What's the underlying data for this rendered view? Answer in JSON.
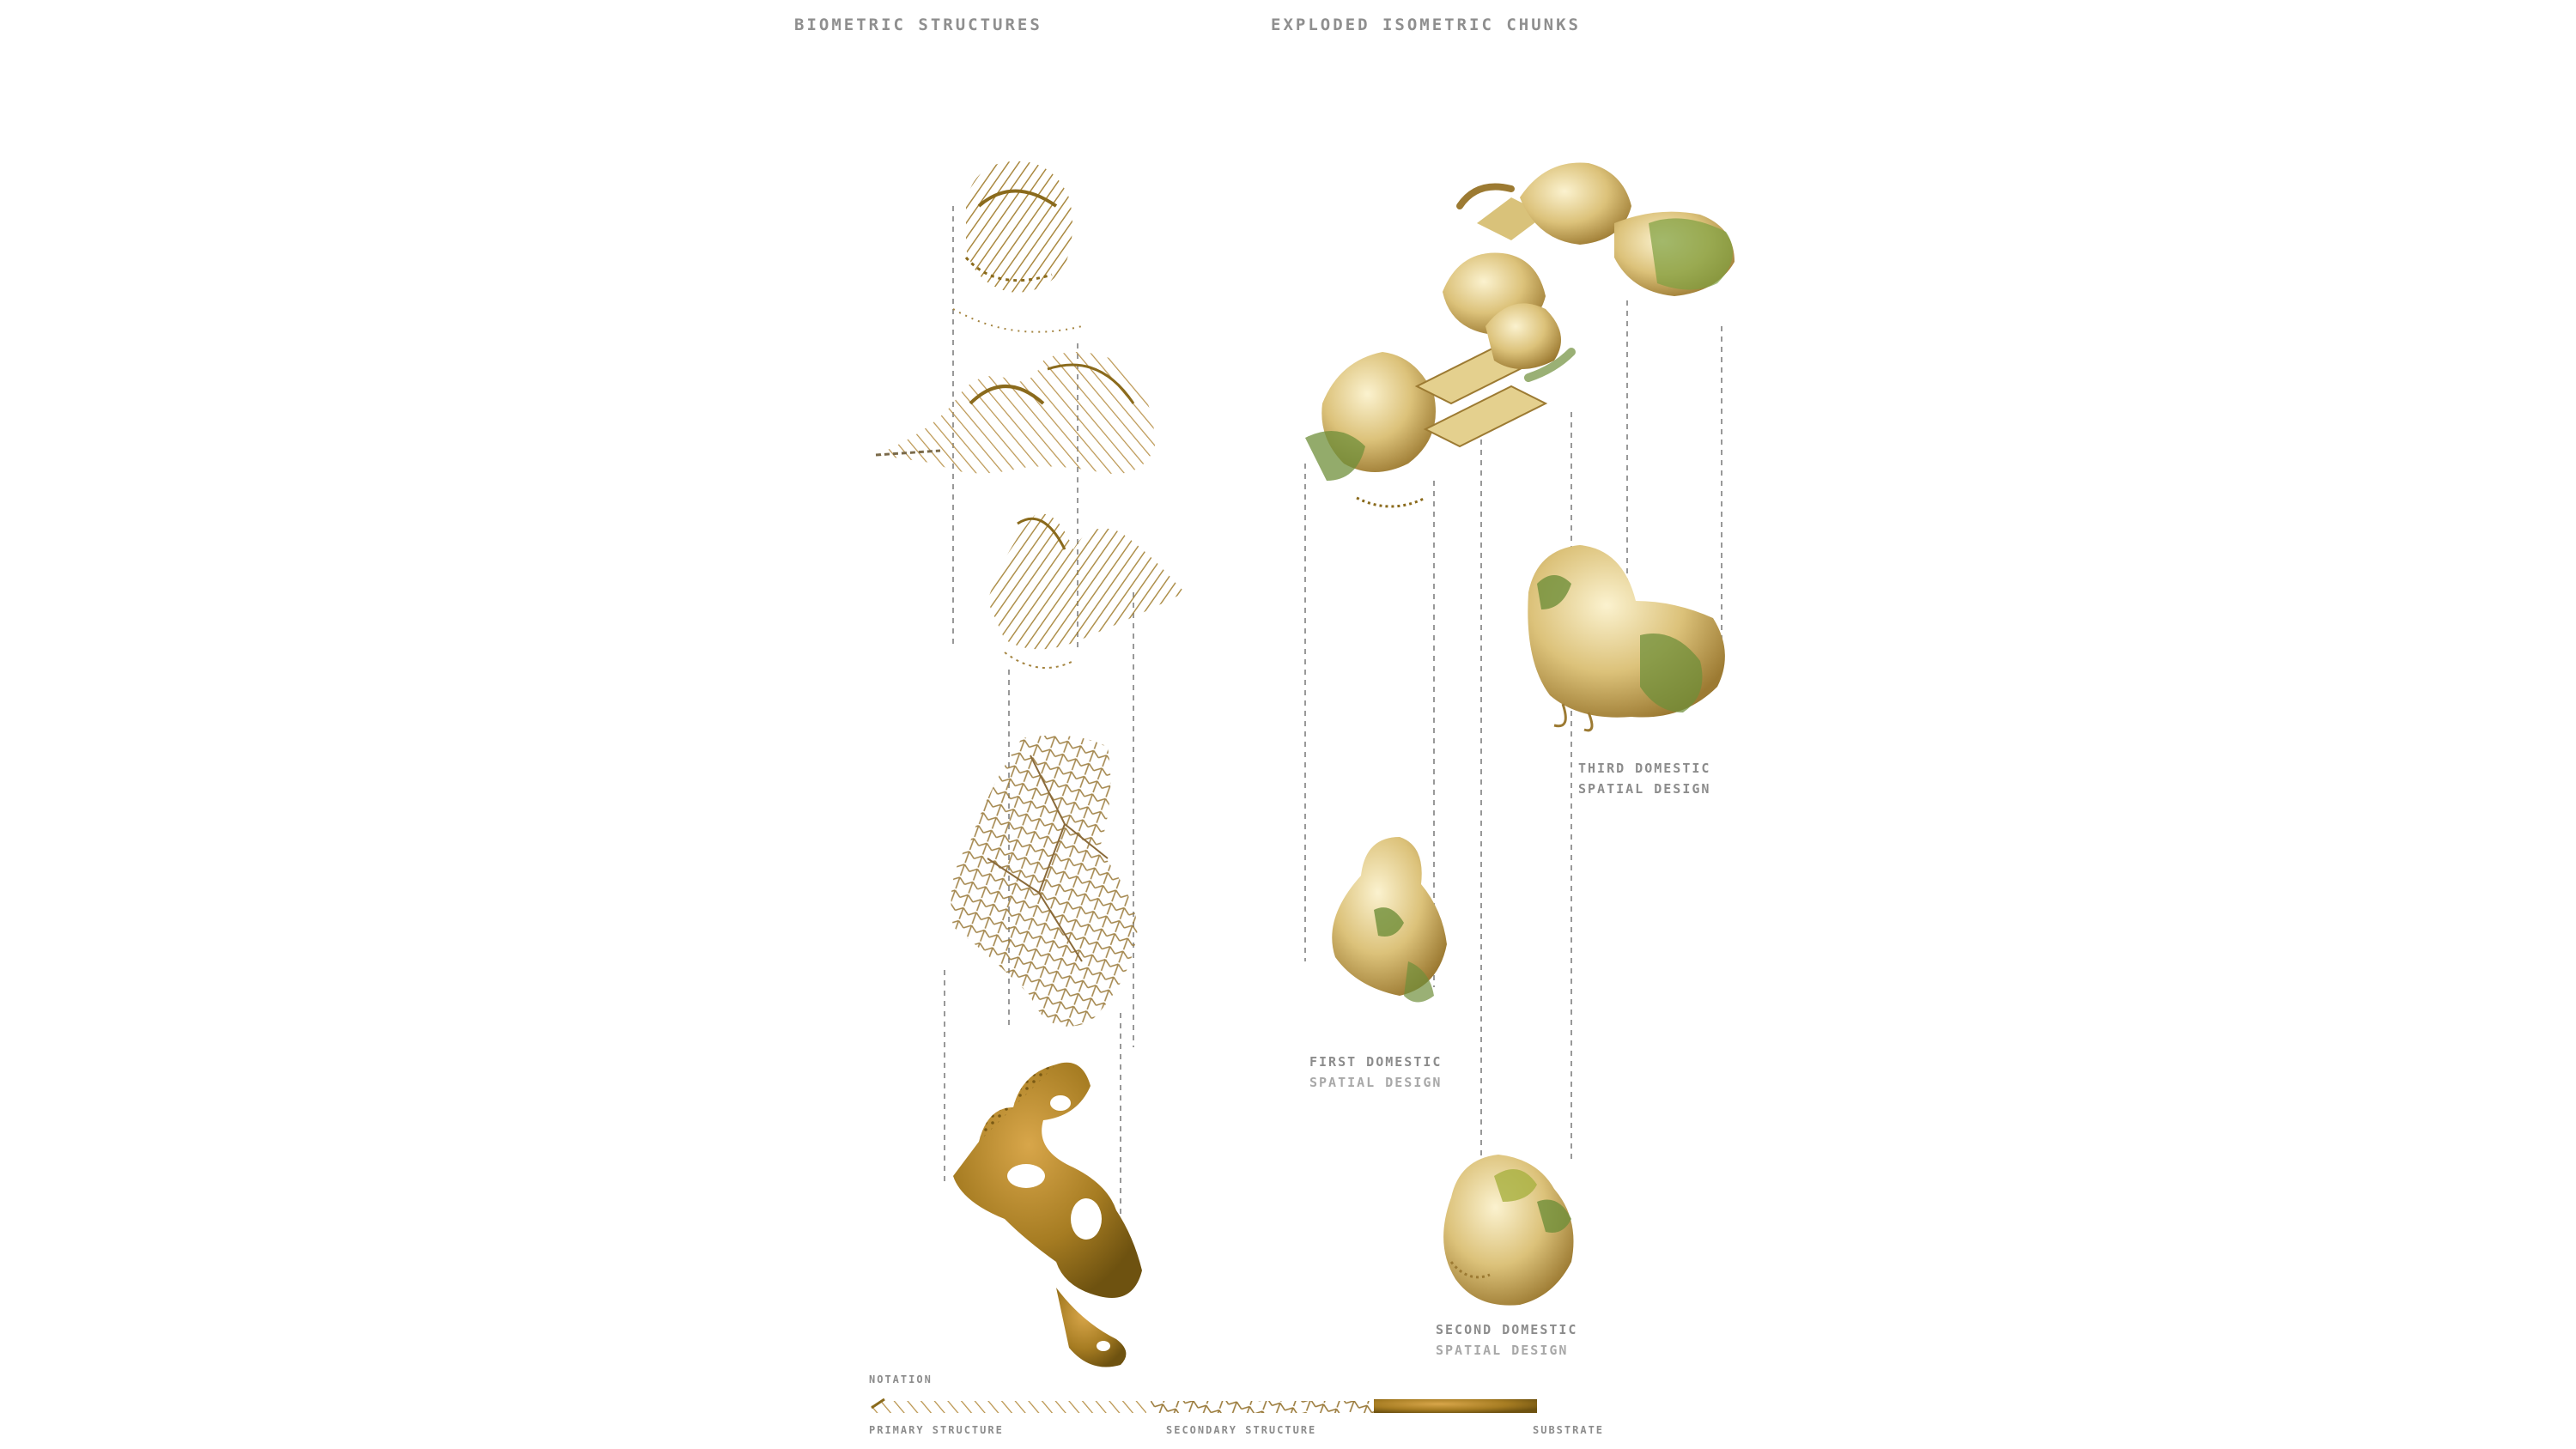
{
  "titles": {
    "left": "BIOMETRIC STRUCTURES",
    "right": "EXPLODED ISOMETRIC CHUNKS"
  },
  "annotations": {
    "third": {
      "line1": "THIRD DOMESTIC",
      "line2": "SPATIAL DESIGN"
    },
    "first": {
      "line1": "FIRST DOMESTIC",
      "line2": "SPATIAL DESIGN"
    },
    "second": {
      "line1": "SECOND DOMESTIC",
      "line2": "SPATIAL DESIGN"
    }
  },
  "legend": {
    "heading": "NOTATION",
    "primary": "PRIMARY STRUCTURE",
    "secondary": "SECONDARY STRUCTURE",
    "substrate": "SUBSTRATE"
  },
  "colors": {
    "gold": "#b08a3a",
    "ochre": "#8a6a1c",
    "cream": "#e6d59a",
    "moss": "#6f8f3a",
    "dashed": "#9a9a9a"
  }
}
